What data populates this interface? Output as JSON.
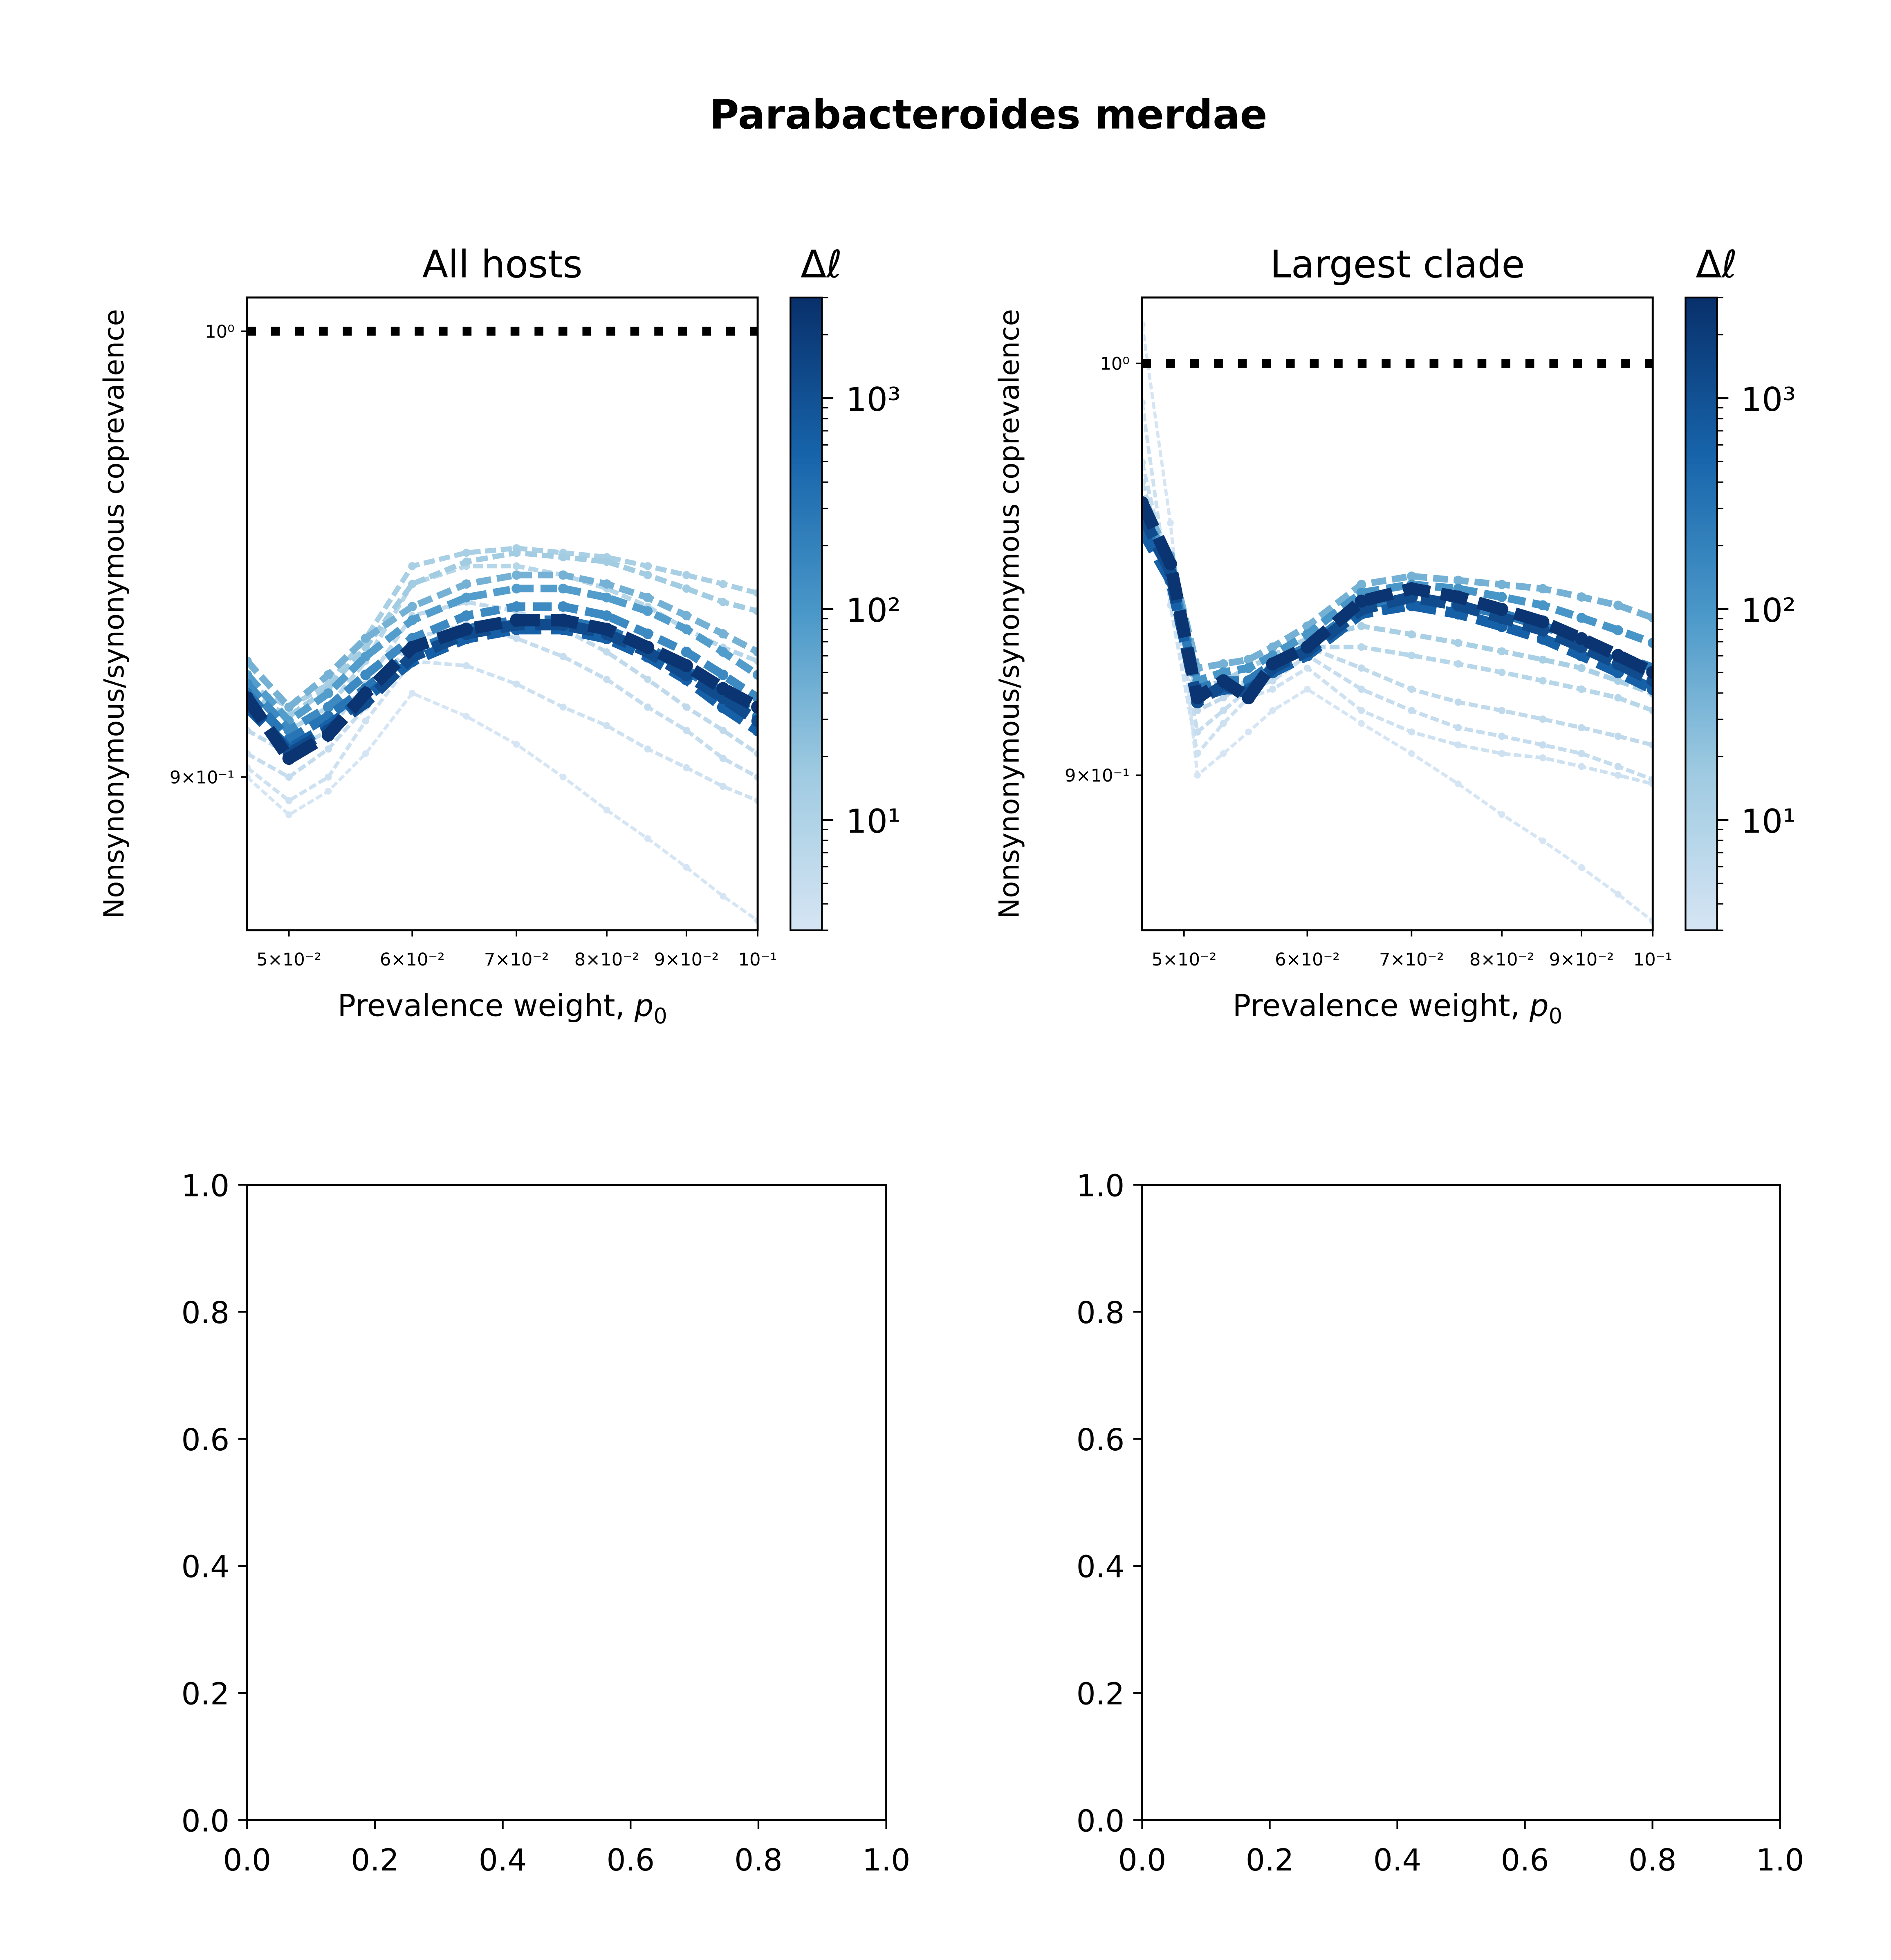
{
  "figure": {
    "title": "Parabacteroides merdae"
  },
  "chart_data": [
    {
      "type": "line",
      "title": "All hosts",
      "xlabel": "Prevalence weight, p0",
      "ylabel": "Nonsynonymous/synonymous coprevalence",
      "xscale": "log",
      "yscale": "log",
      "xlim": [
        0.047,
        0.1
      ],
      "ylim": [
        0.868,
        1.008
      ],
      "x_ticks": [
        {
          "value": 0.05,
          "label": "5×10⁻²"
        },
        {
          "value": 0.06,
          "label": "6×10⁻²"
        },
        {
          "value": 0.07,
          "label": "7×10⁻²"
        },
        {
          "value": 0.08,
          "label": "8×10⁻²"
        },
        {
          "value": 0.09,
          "label": "9×10⁻²"
        },
        {
          "value": 0.1,
          "label": "10⁻¹"
        }
      ],
      "y_ticks": [
        {
          "value": 1.0,
          "label": "10⁰"
        },
        {
          "value": 0.9,
          "label": "9×10⁻¹"
        }
      ],
      "reference_line": {
        "y": 1.0,
        "style": "dotted",
        "color": "#000000"
      },
      "colorbar": {
        "label": "Δℓ",
        "scale": "log",
        "range": [
          3,
          3000
        ],
        "ticks": [
          {
            "value": 10,
            "label": "10¹"
          },
          {
            "value": 100,
            "label": "10²"
          },
          {
            "value": 1000,
            "label": "10³"
          }
        ],
        "colors": [
          "#d6e5f4",
          "#9ecae1",
          "#4a98c9",
          "#1764ab",
          "#08306b"
        ]
      },
      "x": [
        0.047,
        0.05,
        0.053,
        0.056,
        0.06,
        0.065,
        0.07,
        0.075,
        0.08,
        0.085,
        0.09,
        0.095,
        0.1
      ],
      "series": [
        {
          "dl": 3,
          "values": [
            0.9,
            0.892,
            0.897,
            0.905,
            0.918,
            0.913,
            0.907,
            0.9,
            0.893,
            0.887,
            0.881,
            0.875,
            0.87
          ]
        },
        {
          "dl": 4,
          "values": [
            0.902,
            0.895,
            0.9,
            0.912,
            0.925,
            0.924,
            0.92,
            0.915,
            0.911,
            0.906,
            0.902,
            0.898,
            0.895
          ]
        },
        {
          "dl": 5,
          "values": [
            0.905,
            0.9,
            0.906,
            0.915,
            0.93,
            0.933,
            0.93,
            0.926,
            0.921,
            0.915,
            0.91,
            0.904,
            0.9
          ]
        },
        {
          "dl": 6,
          "values": [
            0.91,
            0.905,
            0.91,
            0.92,
            0.935,
            0.938,
            0.936,
            0.932,
            0.927,
            0.921,
            0.915,
            0.91,
            0.905
          ]
        },
        {
          "dl": 8,
          "values": [
            0.915,
            0.91,
            0.915,
            0.925,
            0.942,
            0.946,
            0.946,
            0.944,
            0.941,
            0.937,
            0.932,
            0.928,
            0.925
          ]
        },
        {
          "dl": 12,
          "values": [
            0.92,
            0.915,
            0.92,
            0.93,
            0.946,
            0.949,
            0.95,
            0.949,
            0.948,
            0.946,
            0.944,
            0.942,
            0.94
          ]
        },
        {
          "dl": 15,
          "values": [
            0.918,
            0.913,
            0.919,
            0.928,
            0.942,
            0.947,
            0.949,
            0.948,
            0.947,
            0.944,
            0.941,
            0.938,
            0.936
          ]
        },
        {
          "dl": 40,
          "values": [
            0.925,
            0.915,
            0.922,
            0.93,
            0.937,
            0.942,
            0.944,
            0.944,
            0.942,
            0.939,
            0.935,
            0.931,
            0.927
          ]
        },
        {
          "dl": 80,
          "values": [
            0.922,
            0.912,
            0.918,
            0.926,
            0.934,
            0.939,
            0.941,
            0.941,
            0.939,
            0.936,
            0.932,
            0.927,
            0.922
          ]
        },
        {
          "dl": 150,
          "values": [
            0.92,
            0.91,
            0.915,
            0.922,
            0.93,
            0.935,
            0.937,
            0.937,
            0.935,
            0.931,
            0.927,
            0.922,
            0.917
          ]
        },
        {
          "dl": 300,
          "values": [
            0.918,
            0.908,
            0.913,
            0.919,
            0.927,
            0.932,
            0.934,
            0.934,
            0.932,
            0.928,
            0.923,
            0.918,
            0.913
          ]
        },
        {
          "dl": 600,
          "values": [
            0.915,
            0.906,
            0.911,
            0.917,
            0.925,
            0.93,
            0.932,
            0.932,
            0.93,
            0.926,
            0.921,
            0.915,
            0.91
          ]
        },
        {
          "dl": 1200,
          "values": [
            0.916,
            0.905,
            0.91,
            0.916,
            0.926,
            0.931,
            0.933,
            0.933,
            0.931,
            0.927,
            0.922,
            0.917,
            0.912
          ]
        },
        {
          "dl": 2500,
          "values": [
            0.917,
            0.904,
            0.909,
            0.918,
            0.928,
            0.932,
            0.934,
            0.934,
            0.932,
            0.928,
            0.924,
            0.919,
            0.915
          ]
        }
      ]
    },
    {
      "type": "line",
      "title": "Largest clade",
      "xlabel": "Prevalence weight, p0",
      "ylabel": "Nonsynonymous/synonymous coprevalence",
      "xscale": "log",
      "yscale": "log",
      "xlim": [
        0.047,
        0.1
      ],
      "ylim": [
        0.865,
        1.017
      ],
      "x_ticks": [
        {
          "value": 0.05,
          "label": "5×10⁻²"
        },
        {
          "value": 0.06,
          "label": "6×10⁻²"
        },
        {
          "value": 0.07,
          "label": "7×10⁻²"
        },
        {
          "value": 0.08,
          "label": "8×10⁻²"
        },
        {
          "value": 0.09,
          "label": "9×10⁻²"
        },
        {
          "value": 0.1,
          "label": "10⁻¹"
        }
      ],
      "y_ticks": [
        {
          "value": 1.0,
          "label": "10⁰"
        },
        {
          "value": 0.9,
          "label": "9×10⁻¹"
        }
      ],
      "reference_line": {
        "y": 1.0,
        "style": "dotted",
        "color": "#000000"
      },
      "colorbar": {
        "label": "Δℓ",
        "scale": "log",
        "range": [
          3,
          3000
        ],
        "ticks": [
          {
            "value": 10,
            "label": "10¹"
          },
          {
            "value": 100,
            "label": "10²"
          },
          {
            "value": 1000,
            "label": "10³"
          }
        ],
        "colors": [
          "#d6e5f4",
          "#9ecae1",
          "#4a98c9",
          "#1764ab",
          "#08306b"
        ]
      },
      "x": [
        0.047,
        0.049,
        0.051,
        0.053,
        0.055,
        0.057,
        0.06,
        0.065,
        0.07,
        0.075,
        0.08,
        0.085,
        0.09,
        0.095,
        0.1
      ],
      "series": [
        {
          "dl": 3,
          "values": [
            1.01,
            0.96,
            0.9,
            0.905,
            0.91,
            0.915,
            0.92,
            0.912,
            0.905,
            0.898,
            0.891,
            0.885,
            0.879,
            0.873,
            0.867
          ]
        },
        {
          "dl": 4,
          "values": [
            0.99,
            0.94,
            0.905,
            0.912,
            0.918,
            0.92,
            0.925,
            0.915,
            0.91,
            0.907,
            0.905,
            0.904,
            0.902,
            0.9,
            0.898
          ]
        },
        {
          "dl": 5,
          "values": [
            0.975,
            0.945,
            0.91,
            0.915,
            0.92,
            0.922,
            0.928,
            0.92,
            0.915,
            0.911,
            0.909,
            0.907,
            0.905,
            0.902,
            0.899
          ]
        },
        {
          "dl": 6,
          "values": [
            0.97,
            0.948,
            0.915,
            0.918,
            0.922,
            0.925,
            0.93,
            0.925,
            0.92,
            0.917,
            0.915,
            0.913,
            0.911,
            0.909,
            0.907
          ]
        },
        {
          "dl": 8,
          "values": [
            0.965,
            0.95,
            0.918,
            0.92,
            0.922,
            0.926,
            0.93,
            0.93,
            0.928,
            0.926,
            0.924,
            0.922,
            0.92,
            0.918,
            0.915
          ]
        },
        {
          "dl": 12,
          "values": [
            0.962,
            0.952,
            0.92,
            0.922,
            0.925,
            0.928,
            0.932,
            0.935,
            0.933,
            0.931,
            0.929,
            0.927,
            0.925,
            0.922,
            0.919
          ]
        },
        {
          "dl": 40,
          "values": [
            0.965,
            0.952,
            0.925,
            0.926,
            0.927,
            0.93,
            0.935,
            0.945,
            0.947,
            0.946,
            0.945,
            0.944,
            0.942,
            0.94,
            0.937
          ]
        },
        {
          "dl": 100,
          "values": [
            0.963,
            0.95,
            0.922,
            0.924,
            0.925,
            0.928,
            0.933,
            0.943,
            0.945,
            0.944,
            0.942,
            0.94,
            0.937,
            0.934,
            0.931
          ]
        },
        {
          "dl": 250,
          "values": [
            0.96,
            0.948,
            0.92,
            0.922,
            0.922,
            0.926,
            0.93,
            0.94,
            0.942,
            0.94,
            0.938,
            0.935,
            0.932,
            0.928,
            0.925
          ]
        },
        {
          "dl": 600,
          "values": [
            0.958,
            0.946,
            0.918,
            0.92,
            0.92,
            0.924,
            0.928,
            0.938,
            0.94,
            0.938,
            0.935,
            0.932,
            0.928,
            0.924,
            0.92
          ]
        },
        {
          "dl": 1200,
          "values": [
            0.962,
            0.948,
            0.917,
            0.921,
            0.919,
            0.925,
            0.929,
            0.939,
            0.942,
            0.94,
            0.937,
            0.934,
            0.93,
            0.926,
            0.922
          ]
        },
        {
          "dl": 2500,
          "values": [
            0.965,
            0.95,
            0.918,
            0.922,
            0.918,
            0.926,
            0.93,
            0.941,
            0.944,
            0.942,
            0.939,
            0.936,
            0.932,
            0.928,
            0.924
          ]
        }
      ]
    },
    {
      "type": "empty",
      "xlim": [
        0,
        1
      ],
      "ylim": [
        0,
        1
      ],
      "x_ticks": [
        "0.0",
        "0.2",
        "0.4",
        "0.6",
        "0.8",
        "1.0"
      ],
      "y_ticks": [
        "0.0",
        "0.2",
        "0.4",
        "0.6",
        "0.8",
        "1.0"
      ]
    },
    {
      "type": "empty",
      "xlim": [
        0,
        1
      ],
      "ylim": [
        0,
        1
      ],
      "x_ticks": [
        "0.0",
        "0.2",
        "0.4",
        "0.6",
        "0.8",
        "1.0"
      ],
      "y_ticks": [
        "0.0",
        "0.2",
        "0.4",
        "0.6",
        "0.8",
        "1.0"
      ]
    }
  ]
}
